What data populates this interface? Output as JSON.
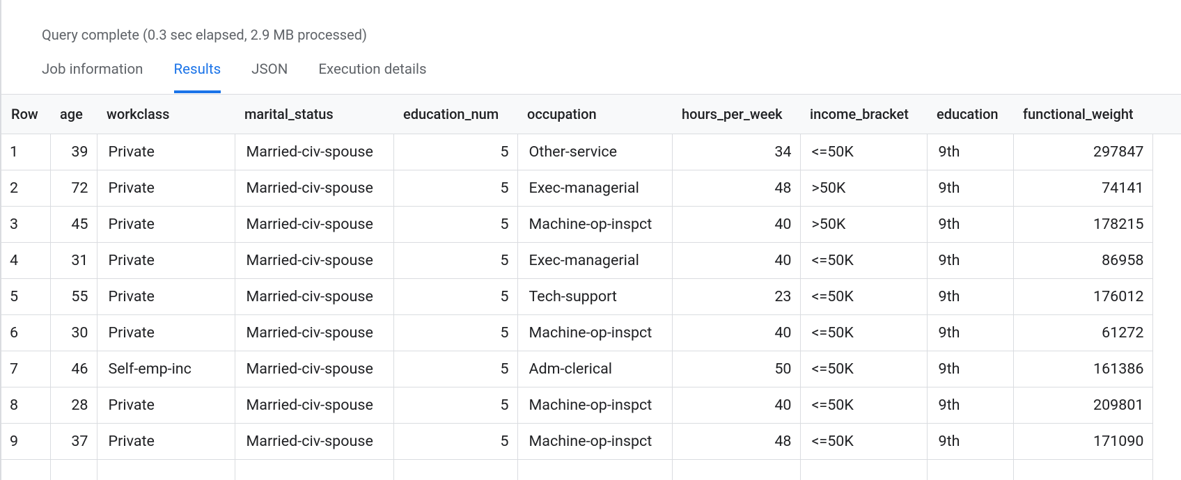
{
  "status": "Query complete (0.3 sec elapsed, 2.9 MB processed)",
  "tabs": [
    "Job information",
    "Results",
    "JSON",
    "Execution details"
  ],
  "active_tab": 1,
  "table": {
    "columns": [
      "Row",
      "age",
      "workclass",
      "marital_status",
      "education_num",
      "occupation",
      "hours_per_week",
      "income_bracket",
      "education",
      "functional_weight"
    ],
    "rows": [
      [
        1,
        39,
        "Private",
        "Married-civ-spouse",
        5,
        "Other-service",
        34,
        "<=50K",
        "9th",
        297847
      ],
      [
        2,
        72,
        "Private",
        "Married-civ-spouse",
        5,
        "Exec-managerial",
        48,
        ">50K",
        "9th",
        74141
      ],
      [
        3,
        45,
        "Private",
        "Married-civ-spouse",
        5,
        "Machine-op-inspct",
        40,
        ">50K",
        "9th",
        178215
      ],
      [
        4,
        31,
        "Private",
        "Married-civ-spouse",
        5,
        "Exec-managerial",
        40,
        "<=50K",
        "9th",
        86958
      ],
      [
        5,
        55,
        "Private",
        "Married-civ-spouse",
        5,
        "Tech-support",
        23,
        "<=50K",
        "9th",
        176012
      ],
      [
        6,
        30,
        "Private",
        "Married-civ-spouse",
        5,
        "Machine-op-inspct",
        40,
        "<=50K",
        "9th",
        61272
      ],
      [
        7,
        46,
        "Self-emp-inc",
        "Married-civ-spouse",
        5,
        "Adm-clerical",
        50,
        "<=50K",
        "9th",
        161386
      ],
      [
        8,
        28,
        "Private",
        "Married-civ-spouse",
        5,
        "Machine-op-inspct",
        40,
        "<=50K",
        "9th",
        209801
      ],
      [
        9,
        37,
        "Private",
        "Married-civ-spouse",
        5,
        "Machine-op-inspct",
        48,
        "<=50K",
        "9th",
        171090
      ]
    ]
  }
}
